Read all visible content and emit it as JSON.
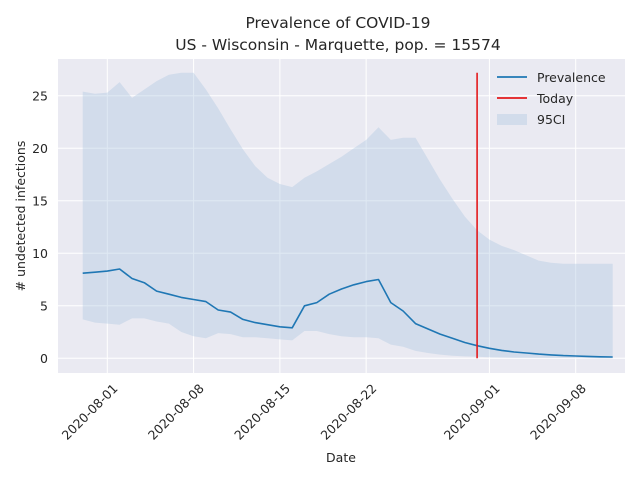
{
  "chart_data": {
    "type": "line",
    "title": "Prevalence of COVID-19",
    "subtitle": "US - Wisconsin - Marquette, pop. = 15574",
    "xlabel": "Date",
    "ylabel": "# undetected infections",
    "grid": true,
    "legend_position": "top-right",
    "x_tick_labels": [
      "2020-08-01",
      "2020-08-08",
      "2020-08-15",
      "2020-08-22",
      "2020-09-01",
      "2020-09-08"
    ],
    "y_ticks": [
      0,
      5,
      10,
      15,
      20,
      25
    ],
    "xlim": [
      "2020-07-28",
      "2020-09-12"
    ],
    "ylim": [
      -1.4,
      28.5
    ],
    "series": [
      {
        "name": "Prevalence",
        "color": "#1f77b4",
        "x": [
          "2020-07-30",
          "2020-07-31",
          "2020-08-01",
          "2020-08-02",
          "2020-08-03",
          "2020-08-04",
          "2020-08-05",
          "2020-08-06",
          "2020-08-07",
          "2020-08-08",
          "2020-08-09",
          "2020-08-10",
          "2020-08-11",
          "2020-08-12",
          "2020-08-13",
          "2020-08-14",
          "2020-08-15",
          "2020-08-16",
          "2020-08-17",
          "2020-08-18",
          "2020-08-19",
          "2020-08-20",
          "2020-08-21",
          "2020-08-22",
          "2020-08-23",
          "2020-08-24",
          "2020-08-25",
          "2020-08-26",
          "2020-08-27",
          "2020-08-28",
          "2020-08-29",
          "2020-08-30",
          "2020-08-31",
          "2020-09-01",
          "2020-09-02",
          "2020-09-03",
          "2020-09-04",
          "2020-09-05",
          "2020-09-06",
          "2020-09-07",
          "2020-09-08",
          "2020-09-09",
          "2020-09-10",
          "2020-09-11"
        ],
        "values": [
          8.1,
          8.2,
          8.3,
          8.5,
          7.6,
          7.2,
          6.4,
          6.1,
          5.8,
          5.6,
          5.4,
          4.6,
          4.4,
          3.7,
          3.4,
          3.2,
          3.0,
          2.9,
          5.0,
          5.3,
          6.1,
          6.6,
          7.0,
          7.3,
          7.5,
          5.3,
          4.5,
          3.3,
          2.8,
          2.3,
          1.9,
          1.5,
          1.2,
          0.95,
          0.75,
          0.6,
          0.5,
          0.4,
          0.32,
          0.26,
          0.22,
          0.18,
          0.14,
          0.12
        ]
      },
      {
        "name": "Today",
        "color": "#e31a1c",
        "x": [
          "2020-08-31",
          "2020-08-31"
        ],
        "values": [
          0,
          27.2
        ]
      }
    ],
    "band": {
      "name": "95CI",
      "color": "#b0c8e0",
      "upper": [
        25.4,
        25.2,
        25.3,
        26.3,
        24.8,
        25.6,
        26.4,
        27.0,
        27.2,
        27.2,
        25.6,
        23.8,
        21.8,
        19.9,
        18.3,
        17.2,
        16.6,
        16.3,
        17.2,
        17.8,
        18.5,
        19.2,
        20.0,
        20.8,
        22.0,
        20.8,
        21.0,
        21.0,
        19.0,
        17.0,
        15.2,
        13.5,
        12.2,
        11.3,
        10.7,
        10.3,
        9.8,
        9.3,
        9.1,
        9.0,
        9.0,
        9.0,
        9.0,
        9.0
      ],
      "lower": [
        3.7,
        3.4,
        3.3,
        3.2,
        3.8,
        3.8,
        3.5,
        3.3,
        2.5,
        2.1,
        1.9,
        2.4,
        2.3,
        2.0,
        2.0,
        1.9,
        1.8,
        1.7,
        2.6,
        2.6,
        2.3,
        2.1,
        2.0,
        2.0,
        1.9,
        1.3,
        1.1,
        0.7,
        0.5,
        0.35,
        0.25,
        0.18,
        0.14,
        0.1,
        0.08,
        0.06,
        0.05,
        0.04,
        0.03,
        0.03,
        0.02,
        0.02,
        0.01,
        0.01
      ]
    }
  }
}
